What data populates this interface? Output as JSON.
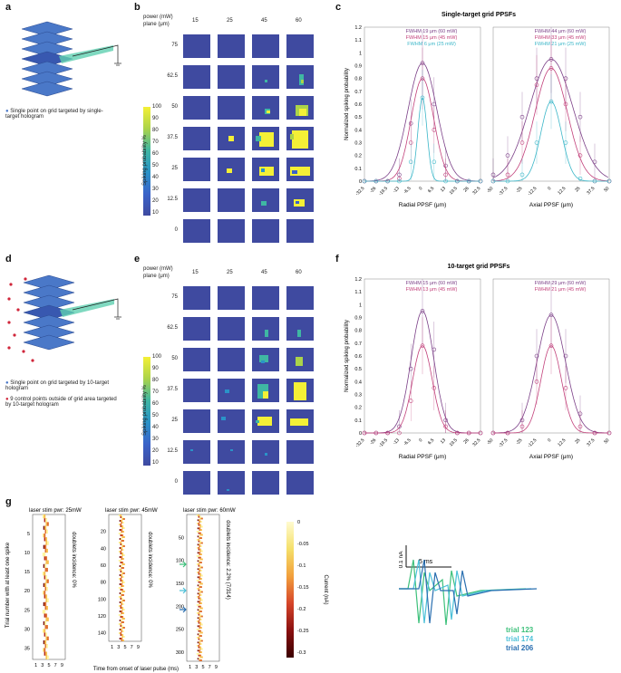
{
  "panels": {
    "a": "a",
    "b": "b",
    "c": "c",
    "d": "d",
    "e": "e",
    "f": "f",
    "g": "g"
  },
  "legend_a": "Single point on grid targeted by single-target hologram",
  "legend_d1": "Single point on grid targeted by 10-target hologram",
  "legend_d2": "9 control points outside of grid area targeted by 10-target hologram",
  "grid": {
    "power_label": "power (mW)",
    "plane_label": "plane (μm)",
    "powers": [
      "15",
      "25",
      "45",
      "60"
    ],
    "planes": [
      "75",
      "62.5",
      "50",
      "37.5",
      "25",
      "12.5",
      "0"
    ]
  },
  "colorbar": {
    "label": "Spiking probability %",
    "ticks": [
      "100",
      "90",
      "80",
      "70",
      "60",
      "50",
      "40",
      "30",
      "20",
      "10"
    ],
    "colors": [
      "#f4f036",
      "#abd34a",
      "#3fb7a3",
      "#2a93c8",
      "#3a63c9",
      "#3f4aa0"
    ]
  },
  "chart_data": [
    {
      "type": "line",
      "title": "Single-target grid PPSFs",
      "panel": "c-radial",
      "xlabel": "Radial PPSF (μm)",
      "ylabel": "Normalized spiking probability",
      "xticks": [
        "-32.5",
        "-26",
        "-19.5",
        "-13",
        "-6.5",
        "0",
        "6.5",
        "13",
        "19.5",
        "26",
        "32.5"
      ],
      "yticks": [
        "0",
        "0.1",
        "0.2",
        "0.3",
        "0.4",
        "0.5",
        "0.6",
        "0.7",
        "0.8",
        "0.9",
        "1",
        "1.1",
        "1.2"
      ],
      "ylim": [
        0,
        1.2
      ],
      "annotations": [
        "FWHM  19 μm (60 mW)",
        "FWHM  15 μm (45 mW)",
        "FWHM  6 μm (25 mW)"
      ],
      "series": [
        {
          "color": "#7b3f87",
          "fwhm": 19,
          "peak": 0.92,
          "x": [
            -32.5,
            -26,
            -19.5,
            -13,
            -6.5,
            0,
            6.5,
            13,
            19.5,
            26,
            32.5
          ],
          "y": [
            0,
            0,
            0,
            0.05,
            0.45,
            0.92,
            0.6,
            0.12,
            0,
            0,
            0
          ]
        },
        {
          "color": "#c2407a",
          "fwhm": 15,
          "peak": 0.8,
          "x": [
            -32.5,
            -26,
            -19.5,
            -13,
            -6.5,
            0,
            6.5,
            13,
            19.5,
            26,
            32.5
          ],
          "y": [
            0,
            0,
            0,
            0.02,
            0.3,
            0.8,
            0.4,
            0.05,
            0,
            0,
            0
          ]
        },
        {
          "color": "#3ab6c8",
          "fwhm": 6,
          "peak": 0.65,
          "x": [
            -32.5,
            -26,
            -19.5,
            -13,
            -6.5,
            0,
            6.5,
            13,
            19.5,
            26,
            32.5
          ],
          "y": [
            0,
            0,
            0,
            0,
            0.15,
            0.65,
            0.15,
            0,
            0,
            0,
            0
          ]
        }
      ]
    },
    {
      "type": "line",
      "panel": "c-axial",
      "xlabel": "Axial PPSF (μm)",
      "xticks": [
        "-50",
        "-37.5",
        "-25",
        "-12.5",
        "0",
        "12.5",
        "25",
        "37.5",
        "50"
      ],
      "ylim": [
        0,
        1.2
      ],
      "annotations": [
        "FWHM  44 μm (60 mW)",
        "FWHM  33 μm (45 mW)",
        "FWHM  21 μm (25 mW)"
      ],
      "series": [
        {
          "color": "#7b3f87",
          "fwhm": 44,
          "peak": 0.95,
          "x": [
            -50,
            -37.5,
            -25,
            -12.5,
            0,
            12.5,
            25,
            37.5,
            50
          ],
          "y": [
            0.05,
            0.2,
            0.5,
            0.8,
            0.95,
            0.8,
            0.5,
            0.15,
            0
          ]
        },
        {
          "color": "#c2407a",
          "fwhm": 33,
          "peak": 0.88,
          "x": [
            -50,
            -37.5,
            -25,
            -12.5,
            0,
            12.5,
            25,
            37.5,
            50
          ],
          "y": [
            0,
            0.05,
            0.3,
            0.75,
            0.88,
            0.6,
            0.2,
            0,
            0
          ]
        },
        {
          "color": "#3ab6c8",
          "fwhm": 21,
          "peak": 0.62,
          "x": [
            -50,
            -37.5,
            -25,
            -12.5,
            0,
            12.5,
            25,
            37.5,
            50
          ],
          "y": [
            0,
            0,
            0.05,
            0.3,
            0.62,
            0.3,
            0.02,
            0,
            0
          ]
        }
      ]
    },
    {
      "type": "line",
      "title": "10-target grid PPSFs",
      "panel": "f-radial",
      "xlabel": "Radial PPSF (μm)",
      "ylabel": "Normalized spiking probability",
      "xticks": [
        "-32.5",
        "-26",
        "-19.5",
        "-13",
        "-6.5",
        "0",
        "6.5",
        "13",
        "19.5",
        "26",
        "32.5"
      ],
      "yticks": [
        "0",
        "0.1",
        "0.2",
        "0.3",
        "0.4",
        "0.5",
        "0.6",
        "0.7",
        "0.8",
        "0.9",
        "1",
        "1.1",
        "1.2"
      ],
      "ylim": [
        0,
        1.2
      ],
      "annotations": [
        "FWHM  15 μm (60 mW)",
        "FWHM  13 μm (45 mW)"
      ],
      "series": [
        {
          "color": "#7b3f87",
          "fwhm": 15,
          "peak": 0.95,
          "x": [
            -32.5,
            -26,
            -19.5,
            -13,
            -6.5,
            0,
            6.5,
            13,
            19.5,
            26,
            32.5
          ],
          "y": [
            0,
            0,
            0,
            0.05,
            0.5,
            0.95,
            0.65,
            0.1,
            0,
            0,
            0
          ]
        },
        {
          "color": "#c2407a",
          "fwhm": 13,
          "peak": 0.68,
          "x": [
            -32.5,
            -26,
            -19.5,
            -13,
            -6.5,
            0,
            6.5,
            13,
            19.5,
            26,
            32.5
          ],
          "y": [
            0,
            0,
            0,
            0,
            0.25,
            0.68,
            0.35,
            0.05,
            0,
            0,
            0
          ]
        }
      ]
    },
    {
      "type": "line",
      "panel": "f-axial",
      "xlabel": "Axial PPSF (μm)",
      "xticks": [
        "-50",
        "-37.5",
        "-25",
        "-12.5",
        "0",
        "12.5",
        "25",
        "37.5",
        "50"
      ],
      "ylim": [
        0,
        1.2
      ],
      "annotations": [
        "FWHM  29 μm (60 mW)",
        "FWHM  21 μm (45 mW)"
      ],
      "series": [
        {
          "color": "#7b3f87",
          "fwhm": 29,
          "peak": 0.92,
          "x": [
            -50,
            -37.5,
            -25,
            -12.5,
            0,
            12.5,
            25,
            37.5,
            50
          ],
          "y": [
            0,
            0,
            0.1,
            0.6,
            0.92,
            0.6,
            0.15,
            0,
            0
          ]
        },
        {
          "color": "#c2407a",
          "fwhm": 21,
          "peak": 0.68,
          "x": [
            -50,
            -37.5,
            -25,
            -12.5,
            0,
            12.5,
            25,
            37.5,
            50
          ],
          "y": [
            0,
            0,
            0.05,
            0.4,
            0.68,
            0.35,
            0.05,
            0,
            0
          ]
        }
      ]
    }
  ],
  "g": {
    "titles": [
      "laser stim pwr: 25mW",
      "laser stim pwr: 45mW",
      "laser stim pwr: 60mW"
    ],
    "ylabel": "Trial number with at least one spike",
    "xlabel": "Time from onset of laser pulse (ms)",
    "xticks": [
      "1",
      "3",
      "5",
      "7",
      "9"
    ],
    "yticks1": [
      "5",
      "10",
      "15",
      "20",
      "25",
      "30",
      "35"
    ],
    "yticks2": [
      "20",
      "40",
      "60",
      "80",
      "100",
      "120",
      "140"
    ],
    "yticks3": [
      "50",
      "100",
      "150",
      "200",
      "250",
      "300"
    ],
    "doublets": [
      "doublets incidence: 0%",
      "doublets incidence: 0%",
      "doublets incidence: 2.2% (7/314)"
    ],
    "colorbar_label": "Current (nA)",
    "colorbar_ticks": [
      "0",
      "-0.05",
      "-0.1",
      "-0.15",
      "-0.2",
      "-0.25",
      "-0.3"
    ],
    "scale_nA": "0.1 nA",
    "scale_ms": "5 ms",
    "trials": [
      {
        "label": "trial 123",
        "color": "#3cc07a"
      },
      {
        "label": "trial 174",
        "color": "#4cc0d8"
      },
      {
        "label": "trial 206",
        "color": "#2a6fb0"
      }
    ]
  }
}
